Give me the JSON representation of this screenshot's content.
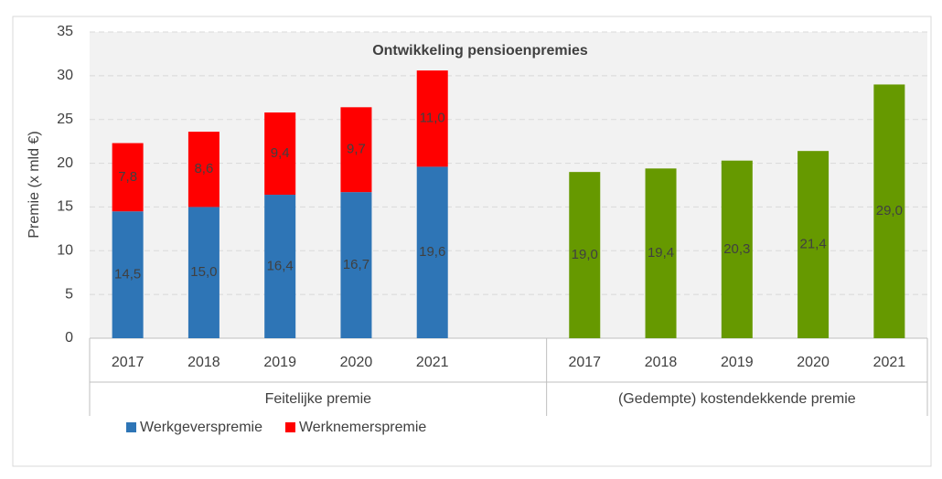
{
  "chart_data": {
    "type": "stacked_bar",
    "title": "Ontwikkeling pensioenpremies",
    "y_label": "Premie (x mld €)",
    "categories": [
      "2017",
      "2018",
      "2019",
      "2020",
      "2021",
      null,
      "2017",
      "2018",
      "2019",
      "2020",
      "2021"
    ],
    "groups": [
      {
        "name": "Feitelijke premie",
        "categories": 6
      },
      {
        "name": "(Gedempte) kostendekkende premie",
        "categories": 5
      }
    ],
    "series": [
      {
        "name": "Werkgeverspremie",
        "color": "#2e75b6",
        "values": [
          14.5,
          15.0,
          16.4,
          16.7,
          19.6,
          null,
          null,
          null,
          null,
          null,
          null
        ],
        "value_labels": [
          "14,5",
          "15,0",
          "16,4",
          "16,7",
          "19,6",
          null,
          null,
          null,
          null,
          null,
          null
        ]
      },
      {
        "name": "Werknemerspremie",
        "color": "#ff0000",
        "values": [
          7.8,
          8.6,
          9.4,
          9.7,
          11.0,
          null,
          null,
          null,
          null,
          null,
          null
        ],
        "value_labels": [
          "7,8",
          "8,6",
          "9,4",
          "9,7",
          "11,0",
          null,
          null,
          null,
          null,
          null,
          null
        ]
      },
      {
        "color": "#669900",
        "values": [
          null,
          null,
          null,
          null,
          null,
          null,
          19.0,
          19.4,
          20.3,
          21.4,
          29.0
        ],
        "value_labels": [
          null,
          null,
          null,
          null,
          null,
          null,
          "19,0",
          "19,4",
          "20,3",
          "21,4",
          "29,0"
        ]
      }
    ],
    "legend_series": [
      0,
      1
    ],
    "ylim": [
      0,
      35
    ],
    "yticks": [
      0,
      5,
      10,
      15,
      20,
      25,
      30,
      35
    ],
    "grid": true
  }
}
